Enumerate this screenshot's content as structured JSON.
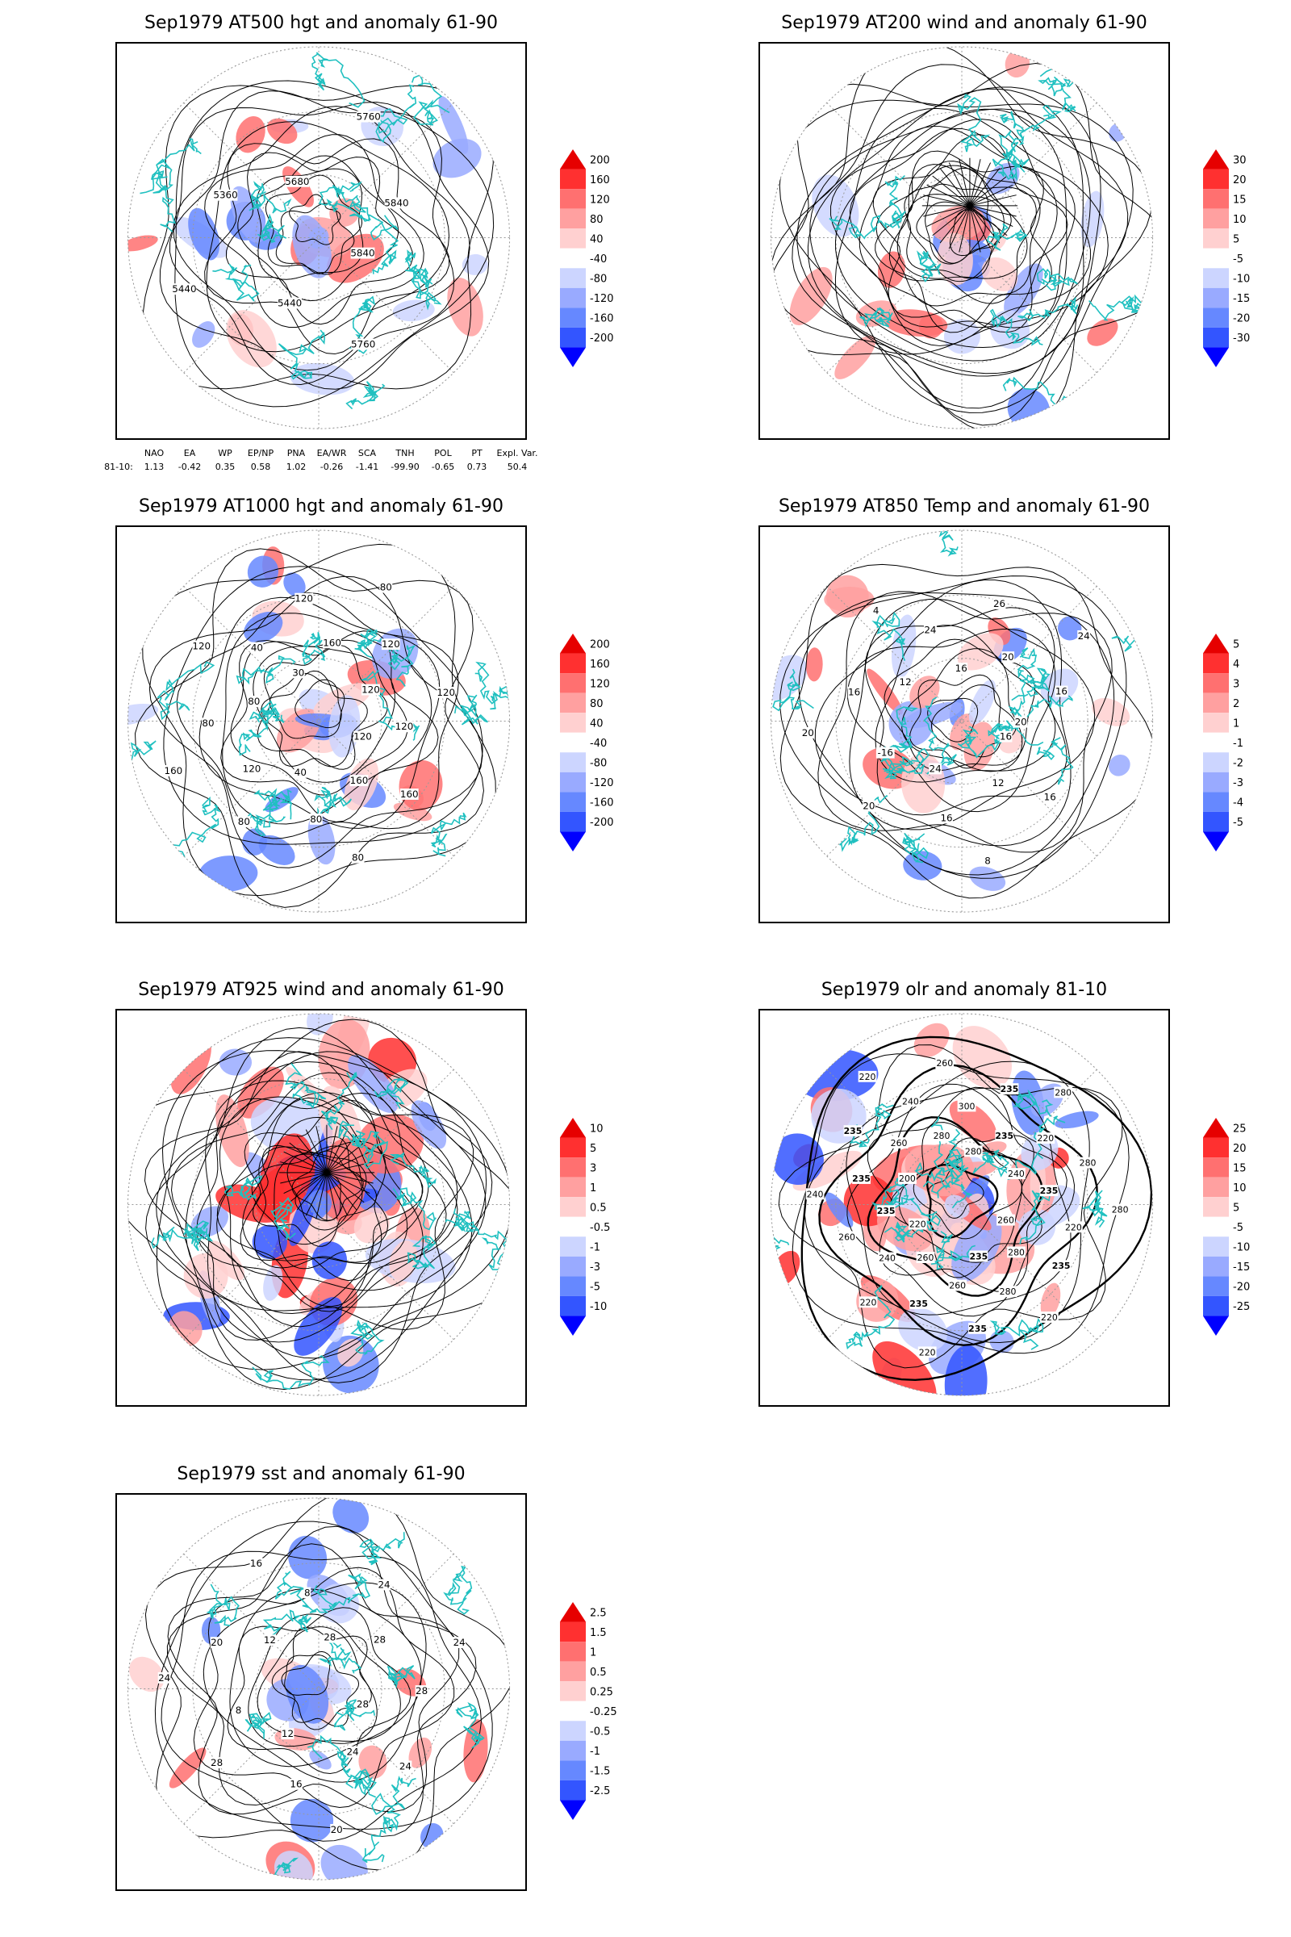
{
  "panels": [
    {
      "id": "at500",
      "title": "Sep1979 AT500 hgt and anomaly 61-90",
      "contour_labels": [
        "5840",
        "5760",
        "5440",
        "5440",
        "5360",
        "5680",
        "5760",
        "5840"
      ],
      "colorbar": {
        "top": "200",
        "labels": [
          "160",
          "120",
          "80",
          "40",
          "-40",
          "-80",
          "-120",
          "-160"
        ],
        "bottom": "-200"
      }
    },
    {
      "id": "at200",
      "title": "Sep1979 AT200 wind and anomaly 61-90",
      "contour_labels": [],
      "colorbar": {
        "top": "30",
        "labels": [
          "20",
          "15",
          "10",
          "5",
          "-5",
          "-10",
          "-15",
          "-20"
        ],
        "bottom": "-30"
      }
    },
    {
      "id": "at1000",
      "title": "Sep1979 AT1000 hgt and anomaly 61-90",
      "contour_labels": [
        "120",
        "160",
        "160",
        "80",
        "80",
        "40",
        "80",
        "120",
        "160",
        "80",
        "80",
        "120",
        "40",
        "30",
        "120",
        "160",
        "80",
        "120",
        "120",
        "120",
        "120"
      ],
      "colorbar": {
        "top": "200",
        "labels": [
          "160",
          "120",
          "80",
          "40",
          "-40",
          "-80",
          "-120",
          "-160"
        ],
        "bottom": "-200"
      }
    },
    {
      "id": "at850",
      "title": "Sep1979 AT850 Temp and anomaly 61-90",
      "contour_labels": [
        "16",
        "16",
        "12",
        "8",
        "16",
        "24",
        "20",
        "-16",
        "20",
        "16",
        "12",
        "4",
        "24",
        "16",
        "26",
        "20",
        "24",
        "16",
        "20"
      ],
      "colorbar": {
        "top": "5",
        "labels": [
          "4",
          "3",
          "2",
          "1",
          "-1",
          "-2",
          "-3",
          "-4"
        ],
        "bottom": "-5"
      }
    },
    {
      "id": "at925",
      "title": "Sep1979 AT925 wind and anomaly 61-90",
      "contour_labels": [],
      "colorbar": {
        "top": "10",
        "labels": [
          "5",
          "3",
          "1",
          "0.5",
          "-0.5",
          "-1",
          "-3",
          "-5"
        ],
        "bottom": "-10"
      }
    },
    {
      "id": "olr",
      "title": "Sep1979 olr and anomaly 81-10",
      "contour_labels": [
        "260",
        "235",
        "280",
        "220",
        "280",
        "235",
        "235",
        "260",
        "220",
        "235",
        "260",
        "220",
        "240",
        "220",
        "260",
        "235",
        "240",
        "235",
        "200",
        "235",
        "260",
        "220",
        "240",
        "280",
        "260",
        "300",
        "280",
        "235",
        "235",
        "280",
        "220",
        "240",
        "280",
        "235",
        "280",
        "220"
      ],
      "colorbar": {
        "top": "25",
        "labels": [
          "20",
          "15",
          "10",
          "5",
          "-5",
          "-10",
          "-15",
          "-20"
        ],
        "bottom": "-25"
      }
    },
    {
      "id": "sst",
      "title": "Sep1979 sst and anomaly 61-90",
      "contour_labels": [
        "28",
        "24",
        "24",
        "20",
        "16",
        "12",
        "28",
        "8",
        "24",
        "20",
        "12",
        "16",
        "8",
        "28",
        "24",
        "28",
        "24",
        "28"
      ],
      "colorbar": {
        "top": "2.5",
        "labels": [
          "1.5",
          "1",
          "0.5",
          "0.25",
          "-0.25",
          "-0.5",
          "-1",
          "-1.5"
        ],
        "bottom": "-2.5"
      }
    }
  ],
  "indices": {
    "headers": [
      "NAO",
      "EA",
      "WP",
      "EP/NP",
      "PNA",
      "EA/WR",
      "SCA",
      "TNH",
      "POL",
      "PT",
      "Expl. Var."
    ],
    "row_label": "81-10:",
    "values": [
      "1.13",
      "-0.42",
      "0.35",
      "0.58",
      "1.02",
      "-0.26",
      "-1.41",
      "-99.90",
      "-0.65",
      "0.73",
      "50.4"
    ]
  },
  "colors": {
    "coast": "#20c0c0",
    "contour": "#000000",
    "grid": "#999999",
    "scale": [
      "#0000ff",
      "#3355ff",
      "#6688ff",
      "#99aaff",
      "#ccd5ff",
      "#ffffff",
      "#ffd0d0",
      "#ffa0a0",
      "#ff7070",
      "#ff3030",
      "#e60000"
    ]
  }
}
